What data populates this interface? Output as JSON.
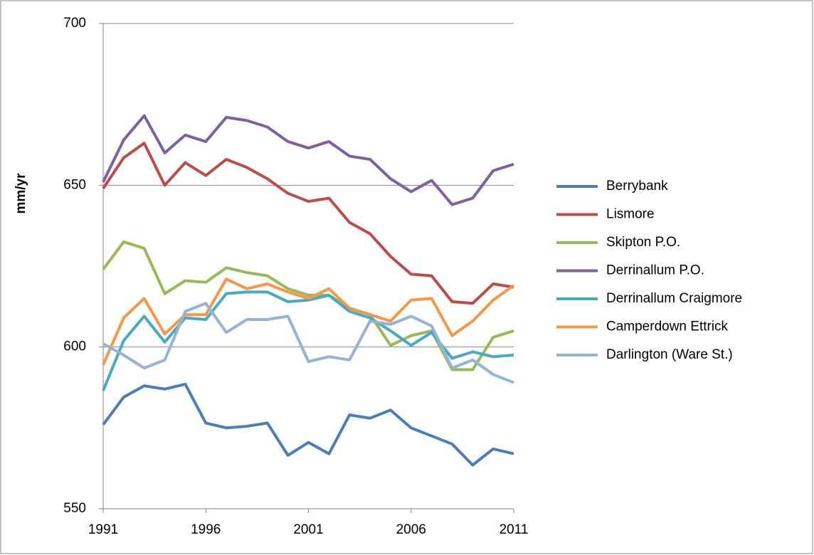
{
  "chart_data": {
    "type": "line",
    "y_label": "mm/yr",
    "x": [
      1991,
      1992,
      1993,
      1994,
      1995,
      1996,
      1997,
      1998,
      1999,
      2000,
      2001,
      2002,
      2003,
      2004,
      2005,
      2006,
      2007,
      2008,
      2009,
      2010,
      2011
    ],
    "xlim": [
      1991,
      2011
    ],
    "xticks": [
      1991,
      1996,
      2001,
      2006,
      2011
    ],
    "ylim": [
      550,
      700
    ],
    "yticks": [
      550,
      600,
      650,
      700
    ],
    "grid": true,
    "legend": "right",
    "series": [
      {
        "name": "Berrybank",
        "color": "#4a7ebb",
        "values": [
          576,
          584.5,
          588,
          587,
          588.5,
          576.5,
          575,
          575.5,
          576.5,
          566.5,
          570.5,
          567,
          579,
          578,
          580.5,
          575,
          572.5,
          570,
          563.5,
          568.5,
          567
        ]
      },
      {
        "name": "Lismore",
        "color": "#be4b48",
        "values": [
          649,
          658.5,
          663,
          650,
          657,
          653,
          658,
          655.5,
          652,
          647.5,
          645,
          646,
          638.5,
          635,
          628,
          622.5,
          622,
          614,
          613.5,
          619.5,
          618.5
        ]
      },
      {
        "name": "Skipton P.O.",
        "color": "#98b954",
        "values": [
          624,
          632.5,
          630.5,
          616.5,
          620.5,
          620,
          624.5,
          623,
          622,
          618,
          616,
          616,
          612,
          610,
          600.5,
          603.5,
          605,
          593,
          593,
          603,
          605
        ]
      },
      {
        "name": "Derrinallum P.O.",
        "color": "#7d60a0",
        "values": [
          651,
          664,
          671.5,
          660,
          665.5,
          663.5,
          671,
          670,
          668,
          663.5,
          661.5,
          663.5,
          659,
          658,
          652,
          648,
          651.5,
          644,
          646,
          654.5,
          656.5
        ]
      },
      {
        "name": "Derrinallum Craigmore",
        "color": "#46aac5",
        "values": [
          586.5,
          602,
          609.5,
          601.5,
          609,
          608.5,
          616.5,
          617,
          617,
          614,
          614.5,
          616,
          611,
          609,
          605,
          600.5,
          604.5,
          596.5,
          598.5,
          597,
          597.5
        ]
      },
      {
        "name": "Camperdown Ettrick",
        "color": "#f79646",
        "values": [
          594.5,
          609,
          615,
          604,
          610,
          610,
          621,
          618,
          619.5,
          617,
          615,
          618,
          612,
          610,
          608,
          614.5,
          615,
          603.5,
          608,
          614.5,
          619
        ]
      },
      {
        "name": "Darlington (Ware St.)",
        "color": "#95b3d7",
        "values": [
          601,
          597.5,
          593.5,
          596,
          611,
          613.5,
          604.5,
          608.5,
          608.5,
          609.5,
          595.5,
          597,
          596,
          608,
          607,
          609.5,
          606.5,
          593.5,
          596,
          591.5,
          589
        ]
      }
    ]
  }
}
